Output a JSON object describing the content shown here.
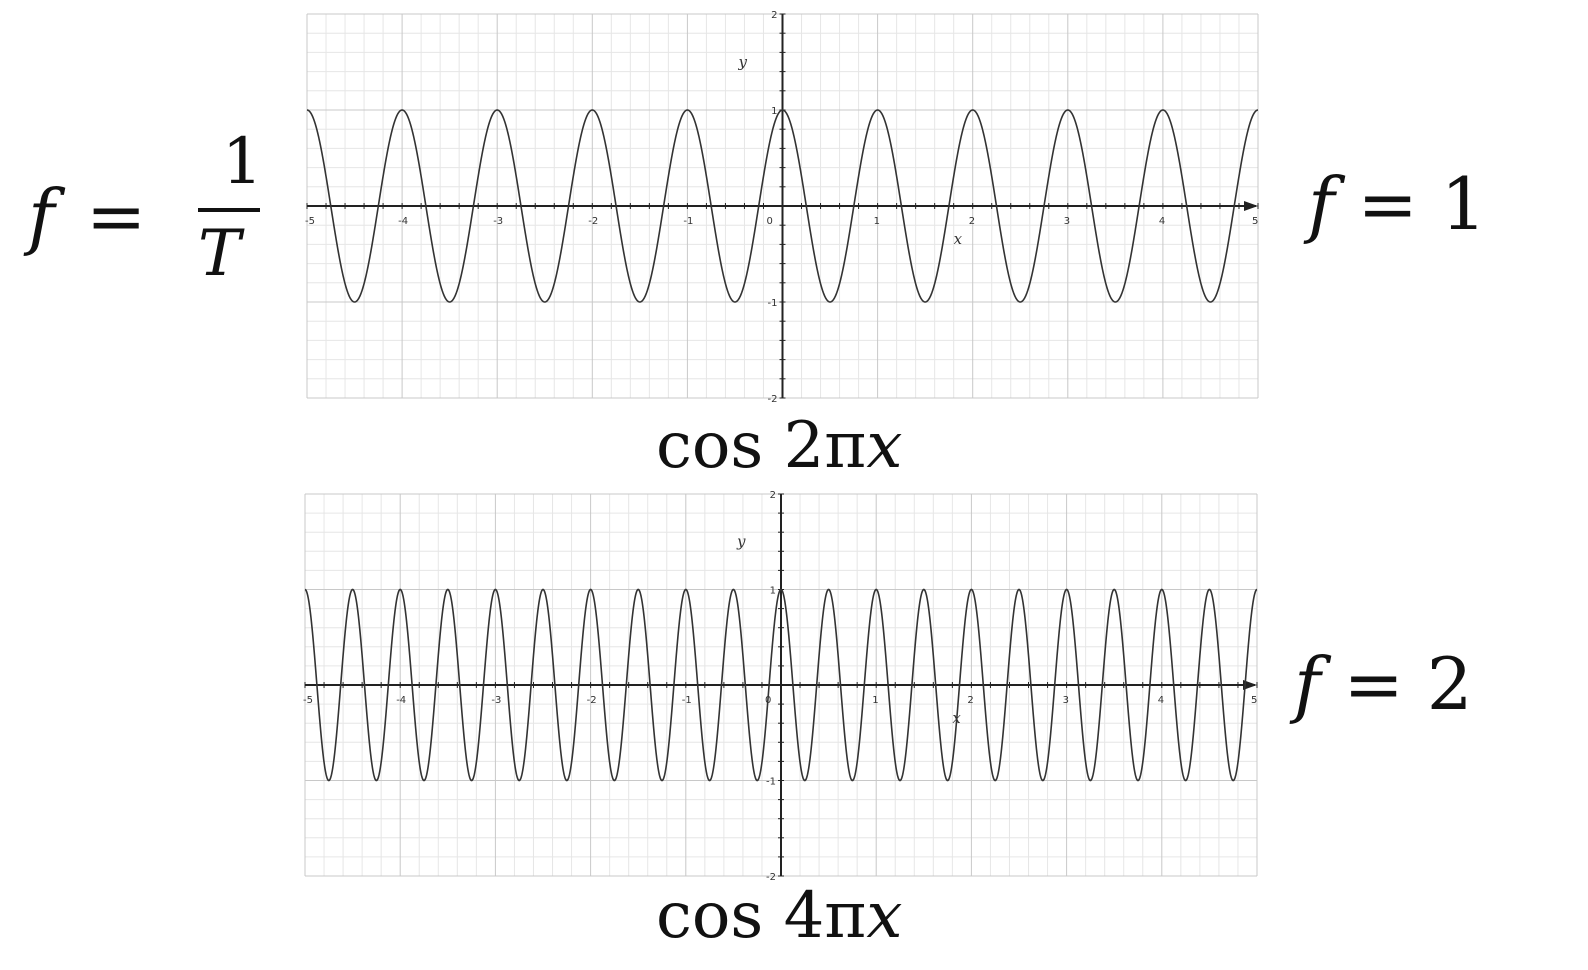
{
  "formula": {
    "lhs": "f",
    "equals": "=",
    "numerator": "1",
    "denominator": "T"
  },
  "labels": {
    "top_frequency": {
      "symbol": "f",
      "equals": "=",
      "value": "1"
    },
    "bottom_frequency": {
      "symbol": "f",
      "equals": "=",
      "value": "2"
    },
    "top_caption": {
      "func": "cos",
      "coef": "2π",
      "var": "x"
    },
    "bottom_caption": {
      "func": "cos",
      "coef": "4π",
      "var": "x"
    }
  },
  "chart_data": [
    {
      "type": "line",
      "function": "cos(2πx)",
      "frequency": 1,
      "xlabel": "x",
      "ylabel": "y",
      "xlim": [
        -5,
        5
      ],
      "ylim": [
        -2,
        2
      ],
      "x_ticks": [
        "-5",
        "-4",
        "-3",
        "-2",
        "-1",
        "0",
        "1",
        "2",
        "3",
        "4",
        "5"
      ],
      "y_ticks": [
        "-2",
        "-1",
        "1",
        "2"
      ],
      "grid": true
    },
    {
      "type": "line",
      "function": "cos(4πx)",
      "frequency": 2,
      "xlabel": "x",
      "ylabel": "y",
      "xlim": [
        -5,
        5
      ],
      "ylim": [
        -2,
        2
      ],
      "x_ticks": [
        "-5",
        "-4",
        "-3",
        "-2",
        "-1",
        "0",
        "1",
        "2",
        "3",
        "4",
        "5"
      ],
      "y_ticks": [
        "-2",
        "-1",
        "1",
        "2"
      ],
      "grid": true
    }
  ],
  "colors": {
    "curve": "#333333",
    "axis": "#222222",
    "grid_major": "#c8c8c8",
    "grid_minor": "#e6e6e6"
  }
}
